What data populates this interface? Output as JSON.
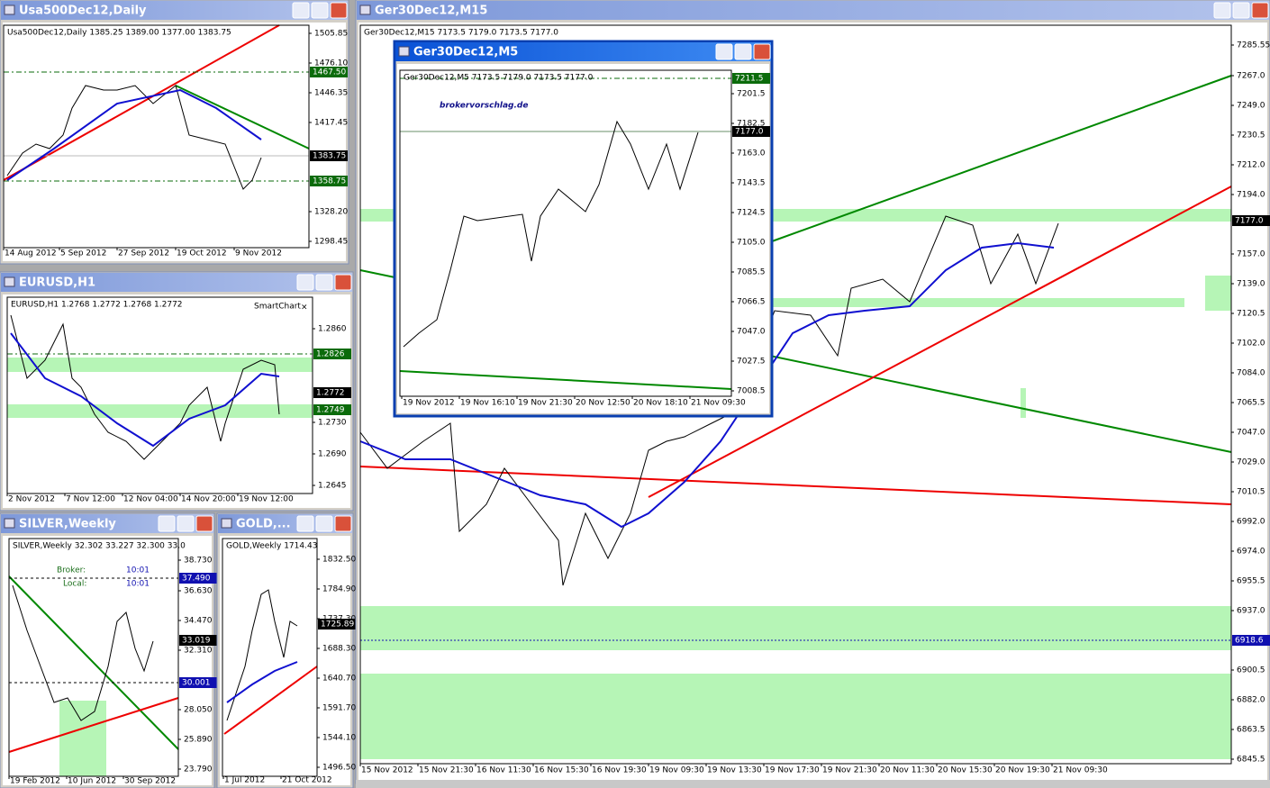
{
  "windows": [
    {
      "title": "Usa500Dec12,Daily",
      "info": "Usa500Dec12,Daily  1385.25 1389.00 1377.00 1383.75",
      "yticks": [
        "1505.85",
        "1476.10",
        "1446.35",
        "1417.45",
        "1328.20",
        "1298.45"
      ],
      "price_tags": [
        "1467.50",
        "1383.75",
        "1358.75"
      ],
      "xticks": [
        "14 Aug 2012",
        "5 Sep 2012",
        "27 Sep 2012",
        "19 Oct 2012",
        "9 Nov 2012"
      ]
    },
    {
      "title": "EURUSD,H1",
      "info": "EURUSD,H1  1.2768 1.2772 1.2768 1.2772",
      "smartchart": "SmartChart",
      "close": "×",
      "yticks": [
        "1.2860",
        "1.2730",
        "1.2690",
        "1.2645"
      ],
      "price_tags": [
        "1.2826",
        "1.2772",
        "1.2749"
      ],
      "xticks": [
        "2 Nov 2012",
        "7 Nov 12:00",
        "12 Nov 04:00",
        "14 Nov 20:00",
        "19 Nov 12:00"
      ]
    },
    {
      "title": "SILVER,Weekly",
      "info": "SILVER,Weekly  32.302 33.227 32.300 33.0",
      "broker_label": "Broker:",
      "broker_time": "10:01",
      "local_label": "Local:",
      "local_time": "10:01",
      "yticks": [
        "38.730",
        "36.630",
        "34.470",
        "32.310",
        "28.050",
        "25.890",
        "23.790"
      ],
      "price_tags": [
        "37.490",
        "33.019",
        "30.001"
      ],
      "xticks": [
        "19 Feb 2012",
        "10 Jun 2012",
        "30 Sep 2012"
      ]
    },
    {
      "title": "GOLD,...",
      "info": "GOLD,Weekly  1714.43",
      "yticks": [
        "1832.50",
        "1784.90",
        "1737.30",
        "1688.30",
        "1640.70",
        "1591.70",
        "1544.10",
        "1496.50"
      ],
      "price_tags": [
        "1725.89"
      ],
      "xticks": [
        "1 Jul 2012",
        "21 Oct 2012"
      ]
    },
    {
      "title": "Ger30Dec12,M15",
      "info": "Ger30Dec12,M15  7173.5 7179.0 7173.5 7177.0",
      "yticks": [
        "7285.55",
        "7267.0",
        "7249.0",
        "7230.5",
        "7212.0",
        "7194.0",
        "7157.0",
        "7139.0",
        "7120.5",
        "7102.0",
        "7084.0",
        "7065.5",
        "7047.0",
        "7029.0",
        "7010.5",
        "6992.0",
        "6974.0",
        "6955.5",
        "6937.0",
        "6900.5",
        "6882.0",
        "6863.5",
        "6845.5"
      ],
      "price_tags": [
        "7177.0",
        "6918.6"
      ],
      "xticks": [
        "15 Nov 2012",
        "15 Nov 21:30",
        "16 Nov 11:30",
        "16 Nov 15:30",
        "16 Nov 19:30",
        "19 Nov 09:30",
        "19 Nov 13:30",
        "19 Nov 17:30",
        "19 Nov 21:30",
        "20 Nov 11:30",
        "20 Nov 15:30",
        "20 Nov 19:30",
        "21 Nov 09:30"
      ]
    },
    {
      "title": "Ger30Dec12,M5",
      "info": "Ger30Dec12,M5  7173.5 7179.0 7173.5 7177.0",
      "watermark": "brokervorschlag.de",
      "yticks": [
        "7201.5",
        "7182.5",
        "7163.0",
        "7143.5",
        "7124.5",
        "7105.0",
        "7085.5",
        "7066.5",
        "7047.0",
        "7027.5",
        "7008.5"
      ],
      "price_tags": [
        "7211.5",
        "7177.0"
      ],
      "xticks": [
        "19 Nov 2012",
        "19 Nov 16:10",
        "19 Nov 21:30",
        "20 Nov 12:50",
        "20 Nov 18:10",
        "21 Nov 09:30"
      ]
    }
  ]
}
